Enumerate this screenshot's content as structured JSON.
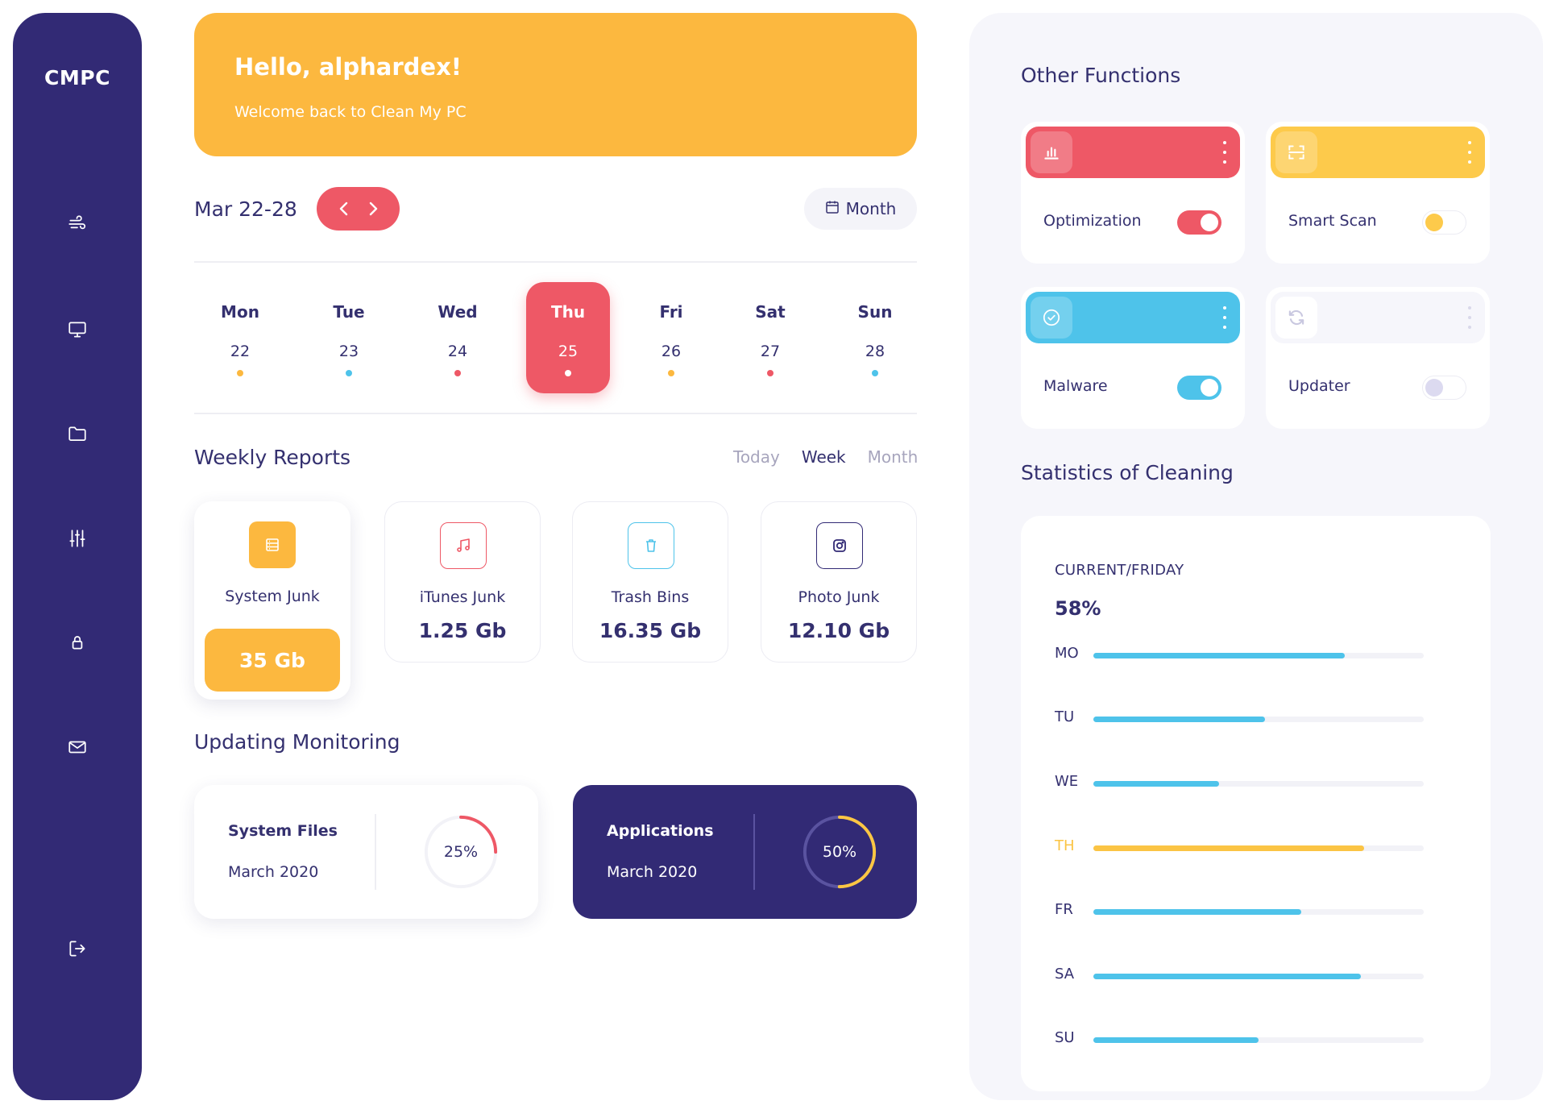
{
  "app": {
    "logo": "CMPC"
  },
  "sidebar": {
    "items": [
      {
        "icon": "wind-icon"
      },
      {
        "icon": "monitor-icon"
      },
      {
        "icon": "folder-icon"
      },
      {
        "icon": "sliders-icon"
      },
      {
        "icon": "lock-icon"
      },
      {
        "icon": "mail-icon"
      },
      {
        "icon": "logout-icon"
      }
    ]
  },
  "banner": {
    "title": "Hello, alphardex!",
    "subtitle": "Welcome back to Clean My PC"
  },
  "calendar": {
    "range": "Mar 22-28",
    "month_label": "Month",
    "days": [
      {
        "name": "Mon",
        "date": "22",
        "dot": "#fcb83f"
      },
      {
        "name": "Tue",
        "date": "23",
        "dot": "#4ec3ea"
      },
      {
        "name": "Wed",
        "date": "24",
        "dot": "#ee5866"
      },
      {
        "name": "Thu",
        "date": "25",
        "dot": "#ffffff",
        "active": true
      },
      {
        "name": "Fri",
        "date": "26",
        "dot": "#fcb83f"
      },
      {
        "name": "Sat",
        "date": "27",
        "dot": "#ee5866"
      },
      {
        "name": "Sun",
        "date": "28",
        "dot": "#4ec3ea"
      }
    ]
  },
  "weekly_reports": {
    "title": "Weekly Reports",
    "filters": [
      "Today",
      "Week",
      "Month"
    ],
    "selected_filter": "Week",
    "cards": [
      {
        "name": "System Junk",
        "value": "35 Gb",
        "icon": "server-icon",
        "color": "#fcb83f"
      },
      {
        "name": "iTunes Junk",
        "value": "1.25 Gb",
        "icon": "music-note-icon",
        "color": "#ee5866"
      },
      {
        "name": "Trash Bins",
        "value": "16.35 Gb",
        "icon": "trash-icon",
        "color": "#4ec3ea"
      },
      {
        "name": "Photo Junk",
        "value": "12.10 Gb",
        "icon": "instagram-icon",
        "color": "#322a75"
      }
    ]
  },
  "monitoring": {
    "title": "Updating Monitoring",
    "cards": [
      {
        "title": "System Files",
        "date": "March 2020",
        "percent": 25,
        "percent_label": "25%",
        "color": "#ee5866"
      },
      {
        "title": "Applications",
        "date": "March 2020",
        "percent": 50,
        "percent_label": "50%",
        "color": "#fcc643"
      }
    ]
  },
  "other_functions": {
    "title": "Other Functions",
    "items": [
      {
        "label": "Optimization",
        "icon": "bar-chart-icon",
        "color": "#ee5866",
        "enabled": true
      },
      {
        "label": "Smart Scan",
        "icon": "scan-icon",
        "color": "#fdca4b",
        "enabled": false
      },
      {
        "label": "Malware",
        "icon": "check-circle-icon",
        "color": "#4ec3ea",
        "enabled": true
      },
      {
        "label": "Updater",
        "icon": "refresh-icon",
        "color": "#f6f6fb",
        "enabled": false
      }
    ]
  },
  "statistics": {
    "title": "Statistics of Cleaning",
    "caption": "CURRENT/FRIDAY",
    "percent": "58%",
    "rows": [
      {
        "day": "MO",
        "value": 0.76,
        "highlight": false
      },
      {
        "day": "TU",
        "value": 0.52,
        "highlight": false
      },
      {
        "day": "WE",
        "value": 0.38,
        "highlight": false
      },
      {
        "day": "TH",
        "value": 0.82,
        "highlight": true
      },
      {
        "day": "FR",
        "value": 0.63,
        "highlight": false
      },
      {
        "day": "SA",
        "value": 0.81,
        "highlight": false
      },
      {
        "day": "SU",
        "value": 0.5,
        "highlight": false
      }
    ]
  },
  "colors": {
    "primary": "#322a75",
    "accent_yellow": "#fcb83f",
    "accent_red": "#ee5866",
    "accent_blue": "#4ec3ea"
  }
}
